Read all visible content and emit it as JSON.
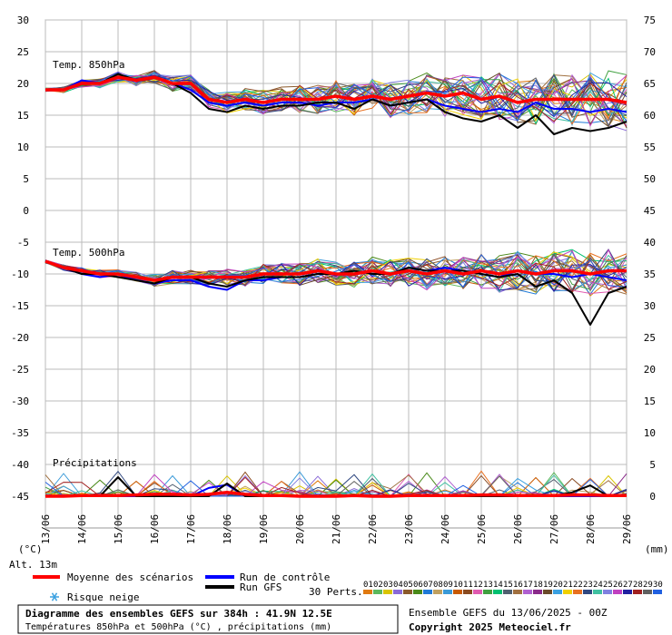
{
  "chart_data": {
    "type": "line",
    "title": "Diagramme des ensembles GEFS sur 384h : 41.9N 12.5E",
    "subtitle": "Températures 850hPa et 500hPa (°C) , précipitations (mm)",
    "left_unit_label": "(°C)",
    "right_unit_label": "(mm)",
    "altitude_label": "Alt. 13m",
    "left_axis_ticks": [
      30,
      25,
      20,
      15,
      10,
      5,
      0,
      -5,
      -10,
      -15,
      -20,
      -25,
      -30,
      -35,
      -40,
      -45
    ],
    "right_axis_ticks": [
      75,
      70,
      65,
      60,
      55,
      50,
      45,
      40,
      35,
      30,
      25,
      20,
      15,
      10,
      5,
      0
    ],
    "x_tick_labels": [
      "13/06",
      "14/06",
      "15/06",
      "16/06",
      "17/06",
      "18/06",
      "19/06",
      "20/06",
      "21/06",
      "22/06",
      "23/06",
      "24/06",
      "25/06",
      "26/06",
      "27/06",
      "28/06",
      "29/06"
    ],
    "x": [
      0,
      1,
      2,
      3,
      4,
      5,
      6,
      7,
      8,
      9,
      10,
      11,
      12,
      13,
      14,
      15,
      16,
      17,
      18,
      19,
      20,
      21,
      22,
      23,
      24,
      25,
      26,
      27,
      28,
      29,
      30,
      31,
      32
    ],
    "panel_labels": [
      "Temp. 850hPa",
      "Temp. 500hPa",
      "Précipitations"
    ],
    "ylim": [
      -45,
      30
    ],
    "series": [
      {
        "group": "temp850",
        "name": "Moyenne des scénarios",
        "color": "#ff0000",
        "values": [
          19,
          19,
          20,
          20,
          21,
          20.5,
          21,
          20,
          20,
          17.5,
          17,
          17.5,
          17,
          17.5,
          17.5,
          17.5,
          18,
          17.5,
          18,
          17.5,
          18,
          18.5,
          18,
          18.5,
          17.5,
          18,
          17,
          17.5,
          17.5,
          17.5,
          17.5,
          17.5,
          17
        ]
      },
      {
        "group": "temp850",
        "name": "Run de contrôle",
        "color": "#0000ff",
        "values": [
          19,
          19,
          20.5,
          20,
          21,
          20.5,
          21,
          20,
          19,
          17,
          16.5,
          17,
          16.5,
          17,
          17,
          16.5,
          17,
          17,
          17.5,
          16.5,
          17,
          17.5,
          16.5,
          16,
          15.5,
          16,
          15.5,
          17,
          16,
          16,
          15.5,
          16,
          15.5
        ]
      },
      {
        "group": "temp850",
        "name": "Run GFS",
        "color": "#000000",
        "values": [
          19,
          19,
          20,
          20,
          21.5,
          20.5,
          21,
          20,
          18.5,
          16,
          15.5,
          16.5,
          16,
          16.5,
          16.5,
          17,
          17,
          16,
          17.5,
          16.5,
          17,
          17.5,
          15.5,
          14.5,
          14,
          15,
          13,
          15,
          12,
          13,
          12.5,
          13,
          14
        ]
      },
      {
        "group": "temp500",
        "name": "Moyenne des scénarios",
        "color": "#ff0000",
        "values": [
          -8,
          -9,
          -9.5,
          -10,
          -10,
          -10.5,
          -11,
          -10.5,
          -10.5,
          -10.5,
          -10.5,
          -10.5,
          -10,
          -10,
          -10,
          -9.5,
          -10,
          -10,
          -9.5,
          -10,
          -9.5,
          -10,
          -9.5,
          -10,
          -9.5,
          -10,
          -9.5,
          -10,
          -9.5,
          -9.5,
          -10,
          -9.5,
          -9.5
        ]
      },
      {
        "group": "temp500",
        "name": "Run de contrôle",
        "color": "#0000ff",
        "values": [
          -8,
          -9,
          -10,
          -10.5,
          -10,
          -11,
          -11.5,
          -11,
          -11,
          -12,
          -12.5,
          -11,
          -11,
          -10.5,
          -10.5,
          -10,
          -10,
          -10,
          -9.5,
          -10,
          -9,
          -9.5,
          -9,
          -9.5,
          -10,
          -10.5,
          -9.5,
          -10,
          -10,
          -10.5,
          -10,
          -10.5,
          -11
        ]
      },
      {
        "group": "temp500",
        "name": "Run GFS",
        "color": "#000000",
        "values": [
          -8,
          -9,
          -10,
          -10,
          -10.5,
          -11,
          -11.5,
          -10.5,
          -10.5,
          -11.5,
          -12,
          -11,
          -10.5,
          -10.5,
          -10.5,
          -10,
          -10,
          -9.5,
          -10,
          -10,
          -9,
          -9.5,
          -9.5,
          -9.5,
          -10,
          -10.5,
          -10,
          -12,
          -11,
          -13,
          -18,
          -13,
          -12
        ]
      },
      {
        "group": "precip",
        "name": "Moyenne des scénarios",
        "color": "#ff0000",
        "values": [
          0,
          0,
          0.1,
          0.1,
          0.1,
          0.2,
          0.3,
          0.3,
          0.2,
          0.3,
          0.6,
          0.3,
          0.1,
          0.1,
          0,
          0,
          0,
          0.1,
          0,
          0,
          0.1,
          0.1,
          0.1,
          0.1,
          0.2,
          0.2,
          0.1,
          0.1,
          0.1,
          0.2,
          0.2,
          0.1,
          0.1
        ]
      },
      {
        "group": "precip",
        "name": "Run de contrôle",
        "color": "#0000ff",
        "values": [
          0,
          0,
          0,
          0,
          0,
          0,
          0,
          0,
          0,
          1.3,
          1.8,
          0,
          0,
          0,
          0,
          0,
          0,
          0,
          0,
          0,
          0,
          0,
          0,
          0,
          0,
          0,
          0,
          0,
          0,
          0,
          0,
          0,
          0
        ]
      },
      {
        "group": "precip",
        "name": "Run GFS",
        "color": "#000000",
        "values": [
          0,
          0,
          0,
          0,
          3,
          0,
          0,
          0,
          0,
          0,
          2,
          0,
          0,
          0,
          0,
          0,
          0,
          0,
          0,
          0,
          0,
          0,
          0,
          0,
          0,
          0,
          0,
          0,
          0,
          0.6,
          1.7,
          0,
          0
        ]
      }
    ],
    "members_count_label": "30 Perts.",
    "member_labels": [
      "01",
      "02",
      "03",
      "04",
      "05",
      "06",
      "07",
      "08",
      "09",
      "10",
      "11",
      "12",
      "13",
      "14",
      "15",
      "16",
      "17",
      "18",
      "19",
      "20",
      "21",
      "22",
      "23",
      "24",
      "25",
      "26",
      "27",
      "28",
      "29",
      "30"
    ],
    "member_colors": [
      "#e07a10",
      "#5cb85c",
      "#d9c400",
      "#8a6ad8",
      "#8b5a2b",
      "#4a8a1a",
      "#1f7ad8",
      "#c0a060",
      "#3a9ad8",
      "#c85a00",
      "#8a4a20",
      "#e05ab0",
      "#40a040",
      "#00c070",
      "#506070",
      "#a07040",
      "#b060d0",
      "#8a2a8a",
      "#6a4a2a",
      "#3aa0e0",
      "#f0d000",
      "#e87020",
      "#304880",
      "#40c0a0",
      "#8080e0",
      "#c040c0",
      "#2020a0",
      "#a02020",
      "#606060",
      "#2060e0"
    ]
  },
  "legend": {
    "mean_label": "Moyenne des scénarios",
    "control_label": "Run de contrôle",
    "gfs_label": "Run GFS",
    "snow_label": "Risque neige",
    "snow_icon": "snowflake-icon"
  },
  "footer": {
    "run_info": "Ensemble GEFS du 13/06/2025 - 00Z",
    "copyright": "Copyright 2025 Meteociel.fr"
  },
  "colors": {
    "mean": "#ff0000",
    "control": "#0000ff",
    "gfs": "#000000",
    "grid": "#aaaaaa",
    "snow": "#3aa0e0"
  }
}
